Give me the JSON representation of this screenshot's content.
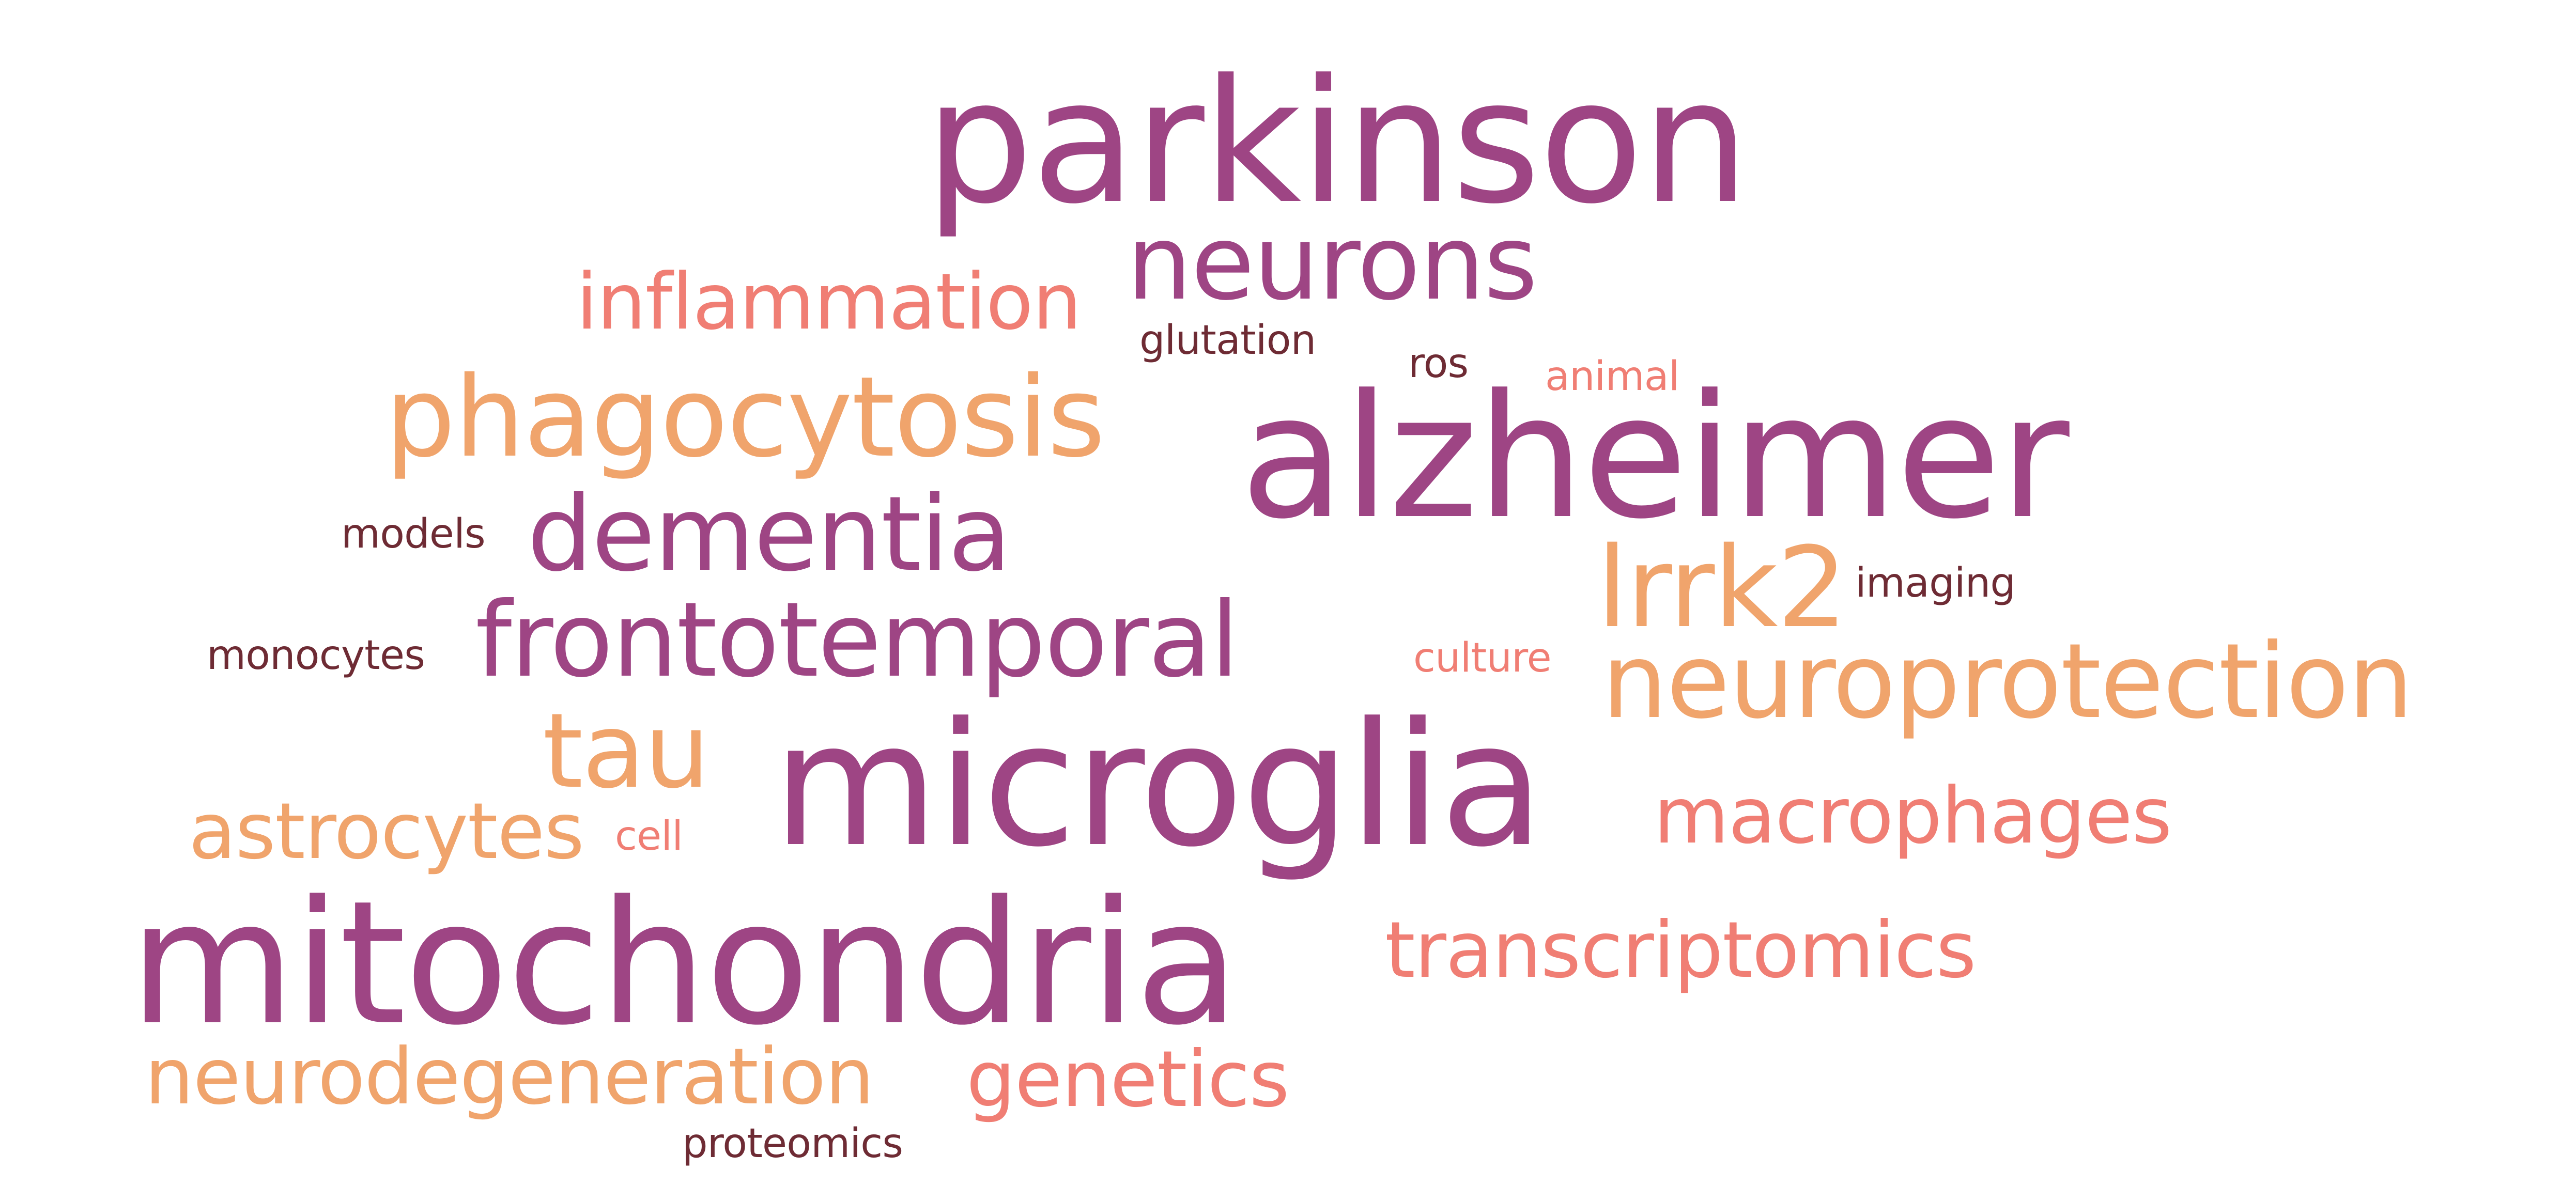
{
  "palette": {
    "plum": "#9E4584",
    "salmon": "#F07E74",
    "orange": "#F0A46C",
    "brown": "#6E2B34"
  },
  "words": [
    {
      "text": "parkinson",
      "color": "plum"
    },
    {
      "text": "neurons",
      "color": "plum"
    },
    {
      "text": "inflammation",
      "color": "salmon"
    },
    {
      "text": "glutation",
      "color": "brown"
    },
    {
      "text": "ros",
      "color": "brown"
    },
    {
      "text": "animal",
      "color": "salmon"
    },
    {
      "text": "phagocytosis",
      "color": "orange"
    },
    {
      "text": "alzheimer",
      "color": "plum"
    },
    {
      "text": "models",
      "color": "brown"
    },
    {
      "text": "dementia",
      "color": "plum"
    },
    {
      "text": "lrrk2",
      "color": "orange"
    },
    {
      "text": "imaging",
      "color": "brown"
    },
    {
      "text": "monocytes",
      "color": "brown"
    },
    {
      "text": "frontotemporal",
      "color": "plum"
    },
    {
      "text": "culture",
      "color": "salmon"
    },
    {
      "text": "neuroprotection",
      "color": "orange"
    },
    {
      "text": "tau",
      "color": "orange"
    },
    {
      "text": "microglia",
      "color": "plum"
    },
    {
      "text": "astrocytes",
      "color": "orange"
    },
    {
      "text": "cell",
      "color": "salmon"
    },
    {
      "text": "macrophages",
      "color": "salmon"
    },
    {
      "text": "mitochondria",
      "color": "plum"
    },
    {
      "text": "transcriptomics",
      "color": "salmon"
    },
    {
      "text": "neurodegeneration",
      "color": "orange"
    },
    {
      "text": "genetics",
      "color": "salmon"
    },
    {
      "text": "proteomics",
      "color": "brown"
    }
  ]
}
